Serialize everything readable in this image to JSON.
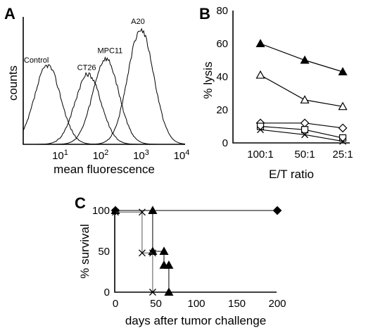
{
  "panels": {
    "a": "A",
    "b": "B",
    "c": "C"
  },
  "chart_data": [
    {
      "panel": "A",
      "type": "line",
      "xlabel": "mean fluorescence",
      "ylabel": "counts",
      "x_scale": "log",
      "x_ticks": [
        {
          "value": 10,
          "label": "10",
          "sup": "1"
        },
        {
          "value": 100,
          "label": "10",
          "sup": "2"
        },
        {
          "value": 1000,
          "label": "10",
          "sup": "3"
        },
        {
          "value": 10000,
          "label": "10",
          "sup": "4"
        }
      ],
      "xlim": [
        1,
        10000
      ],
      "series": [
        {
          "name": "Control",
          "peak": 4,
          "height": 0.62
        },
        {
          "name": "CT26",
          "peak": 40,
          "height": 0.55
        },
        {
          "name": "MPC11",
          "peak": 110,
          "height": 0.67
        },
        {
          "name": "A20",
          "peak": 800,
          "height": 0.9
        }
      ]
    },
    {
      "panel": "B",
      "type": "line",
      "xlabel": "E/T ratio",
      "ylabel": "% lysis",
      "categories": [
        "100:1",
        "50:1",
        "25:1"
      ],
      "y_ticks": [
        0,
        20,
        40,
        60,
        80
      ],
      "ylim": [
        0,
        80
      ],
      "series": [
        {
          "marker": "filled-triangle",
          "values": [
            60,
            50,
            43
          ]
        },
        {
          "marker": "open-triangle",
          "values": [
            41,
            26,
            22
          ]
        },
        {
          "marker": "open-diamond",
          "values": [
            12,
            12,
            9
          ]
        },
        {
          "marker": "open-square",
          "values": [
            10,
            8,
            3
          ]
        },
        {
          "marker": "x",
          "values": [
            8,
            5,
            1
          ]
        }
      ]
    },
    {
      "panel": "C",
      "type": "line",
      "xlabel": "days after tumor challenge",
      "ylabel": "% survival",
      "x_ticks": [
        0,
        50,
        100,
        150,
        200
      ],
      "y_ticks": [
        0,
        50,
        100
      ],
      "xlim": [
        0,
        200
      ],
      "ylim": [
        0,
        100
      ],
      "series": [
        {
          "marker": "filled-diamond",
          "points": [
            [
              0,
              100
            ],
            [
              200,
              100
            ]
          ]
        },
        {
          "marker": "filled-triangle",
          "points": [
            [
              0,
              100
            ],
            [
              46,
              100
            ],
            [
              46,
              50
            ],
            [
              60,
              50
            ],
            [
              60,
              33
            ],
            [
              66,
              33
            ],
            [
              66,
              0
            ]
          ]
        },
        {
          "marker": "x",
          "points": [
            [
              0,
              98
            ],
            [
              33,
              98
            ],
            [
              33,
              48
            ],
            [
              46,
              48
            ],
            [
              46,
              0
            ]
          ]
        }
      ]
    }
  ]
}
